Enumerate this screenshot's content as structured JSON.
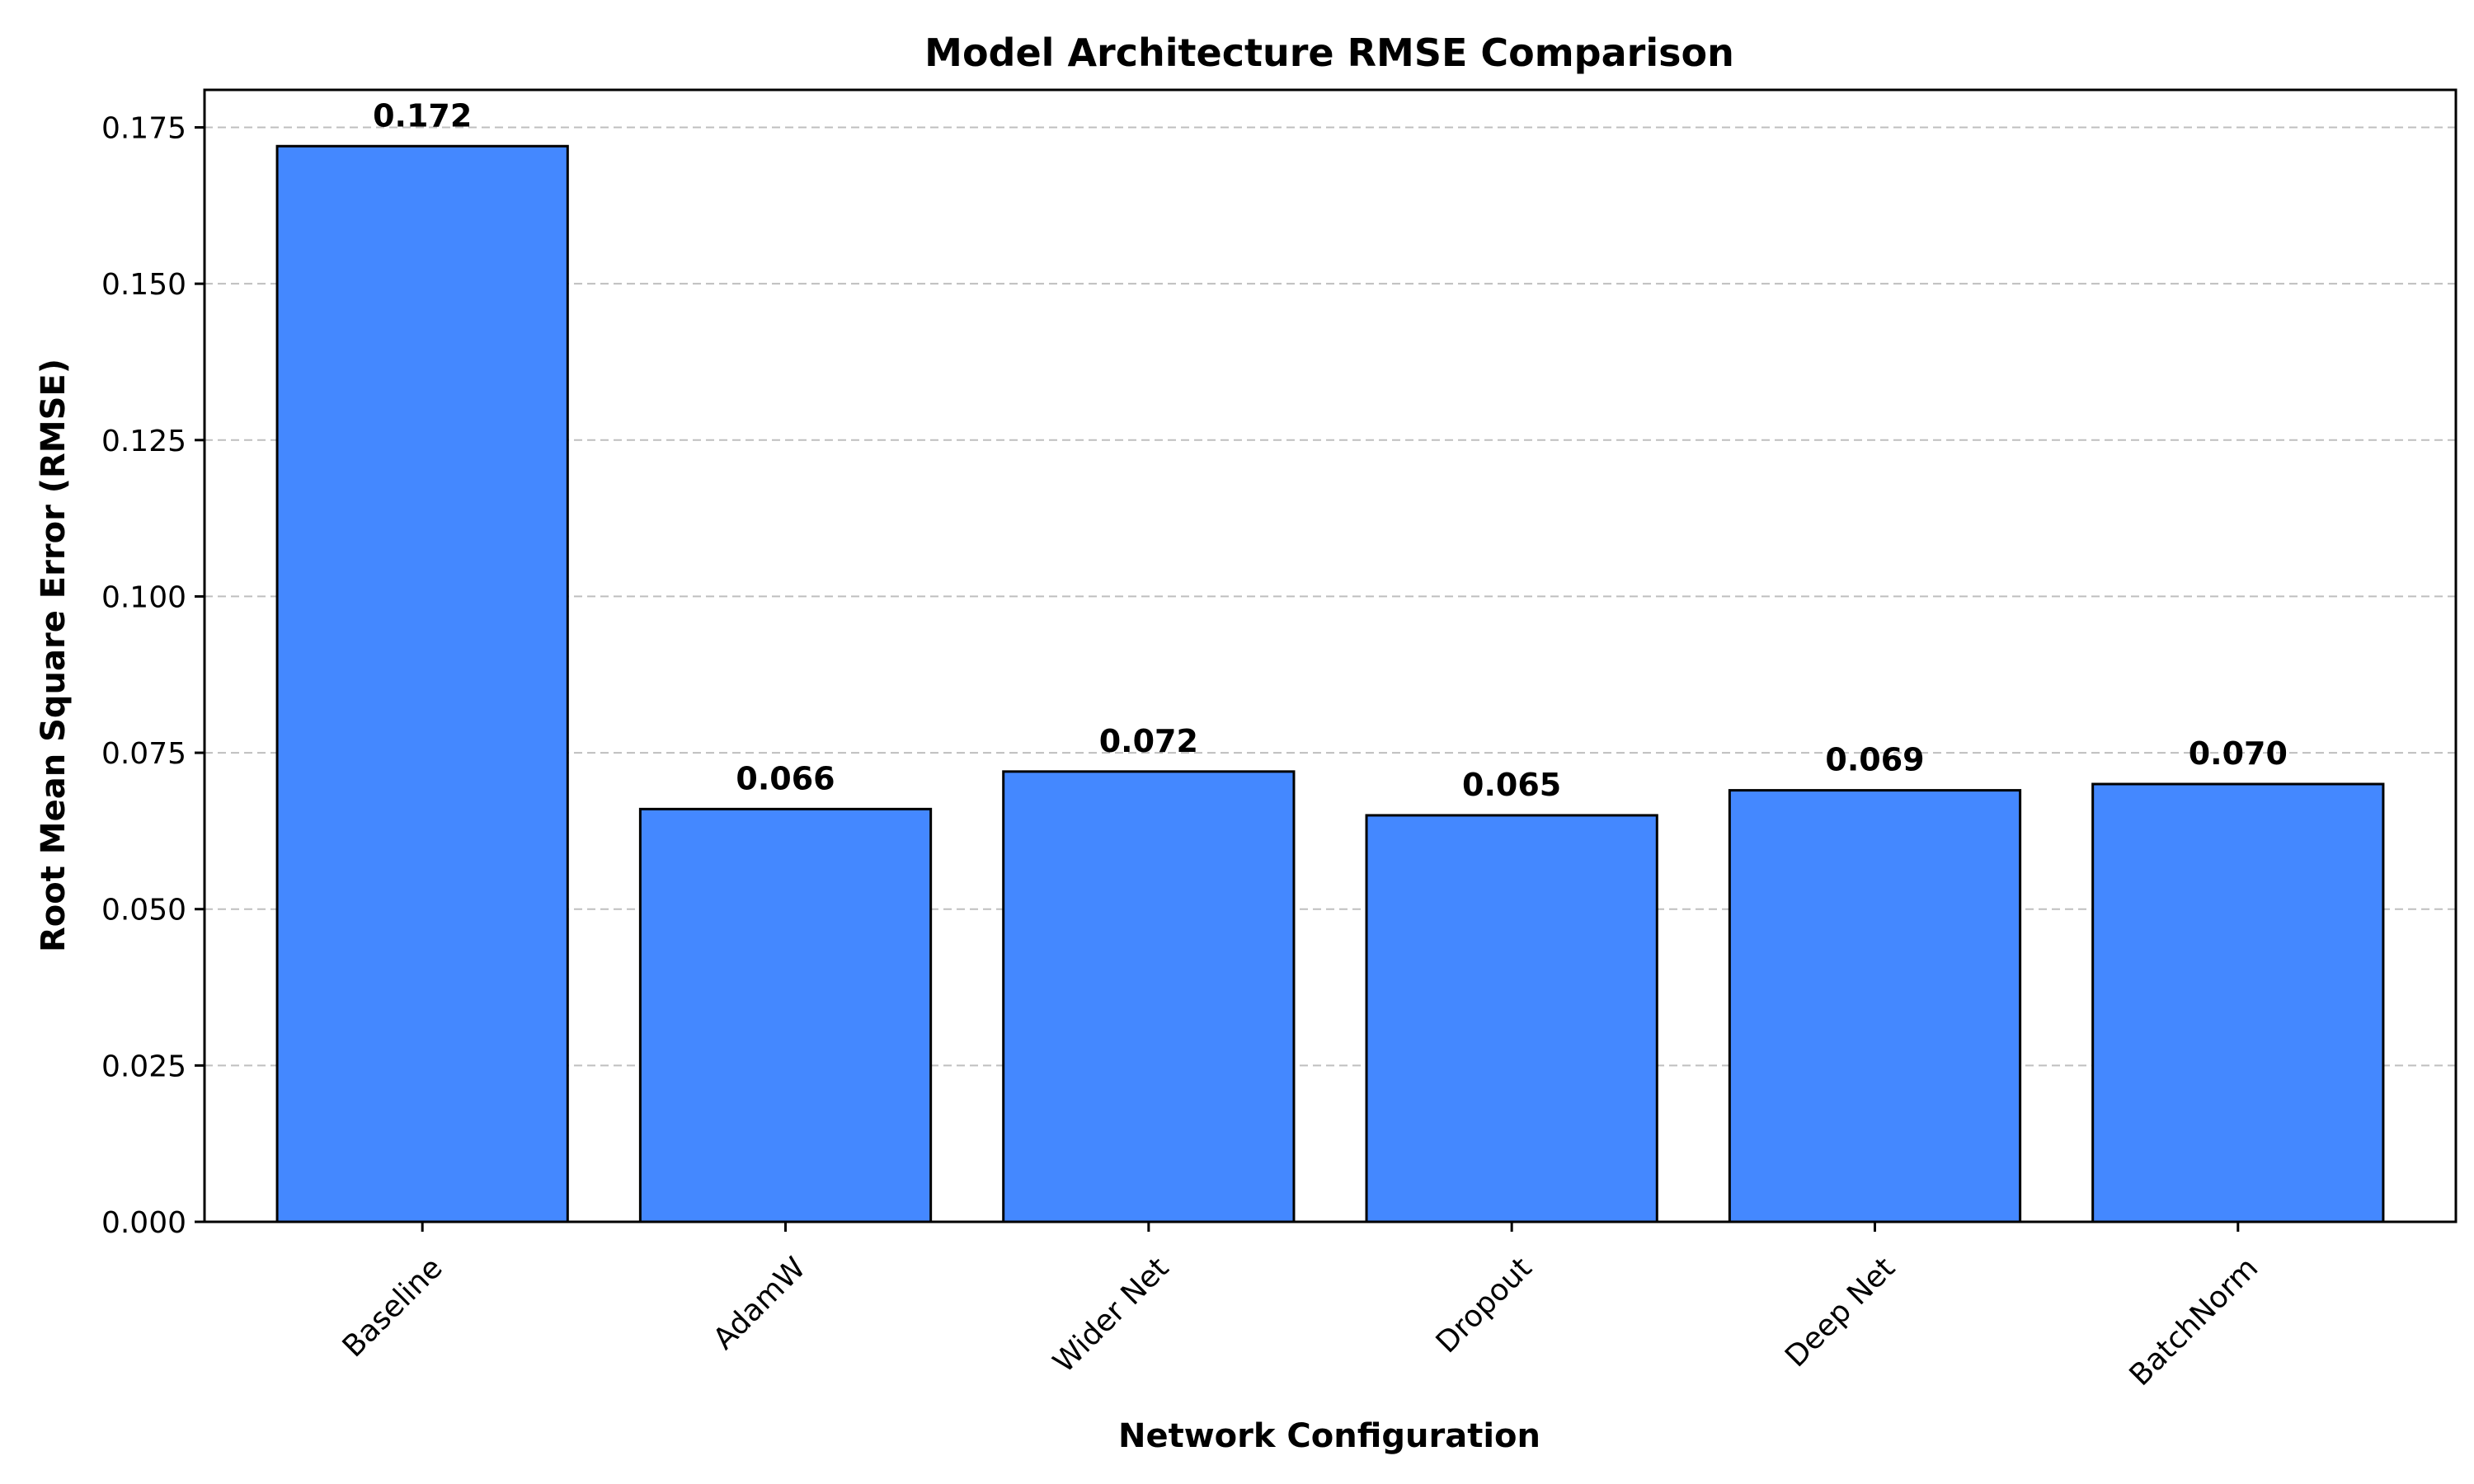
{
  "chart_data": {
    "type": "bar",
    "title": "Model Architecture RMSE Comparison",
    "xlabel": "Network Configuration",
    "ylabel": "Root Mean Square Error (RMSE)",
    "categories": [
      "Baseline",
      "AdamW",
      "Wider Net",
      "Dropout",
      "Deep Net",
      "BatchNorm"
    ],
    "values": [
      0.172,
      0.066,
      0.072,
      0.065,
      0.069,
      0.07
    ],
    "value_labels": [
      "0.172",
      "0.066",
      "0.072",
      "0.065",
      "0.069",
      "0.070"
    ],
    "ylim": [
      0,
      0.181
    ],
    "yticks": [
      0.0,
      0.025,
      0.05,
      0.075,
      0.1,
      0.125,
      0.15,
      0.175
    ],
    "ytick_labels": [
      "0.000",
      "0.025",
      "0.050",
      "0.075",
      "0.100",
      "0.125",
      "0.150",
      "0.175"
    ],
    "grid": "y-dashed",
    "bar_color": "#4488ff",
    "edge_color": "#000000",
    "grid_color": "#bfbfbf"
  }
}
